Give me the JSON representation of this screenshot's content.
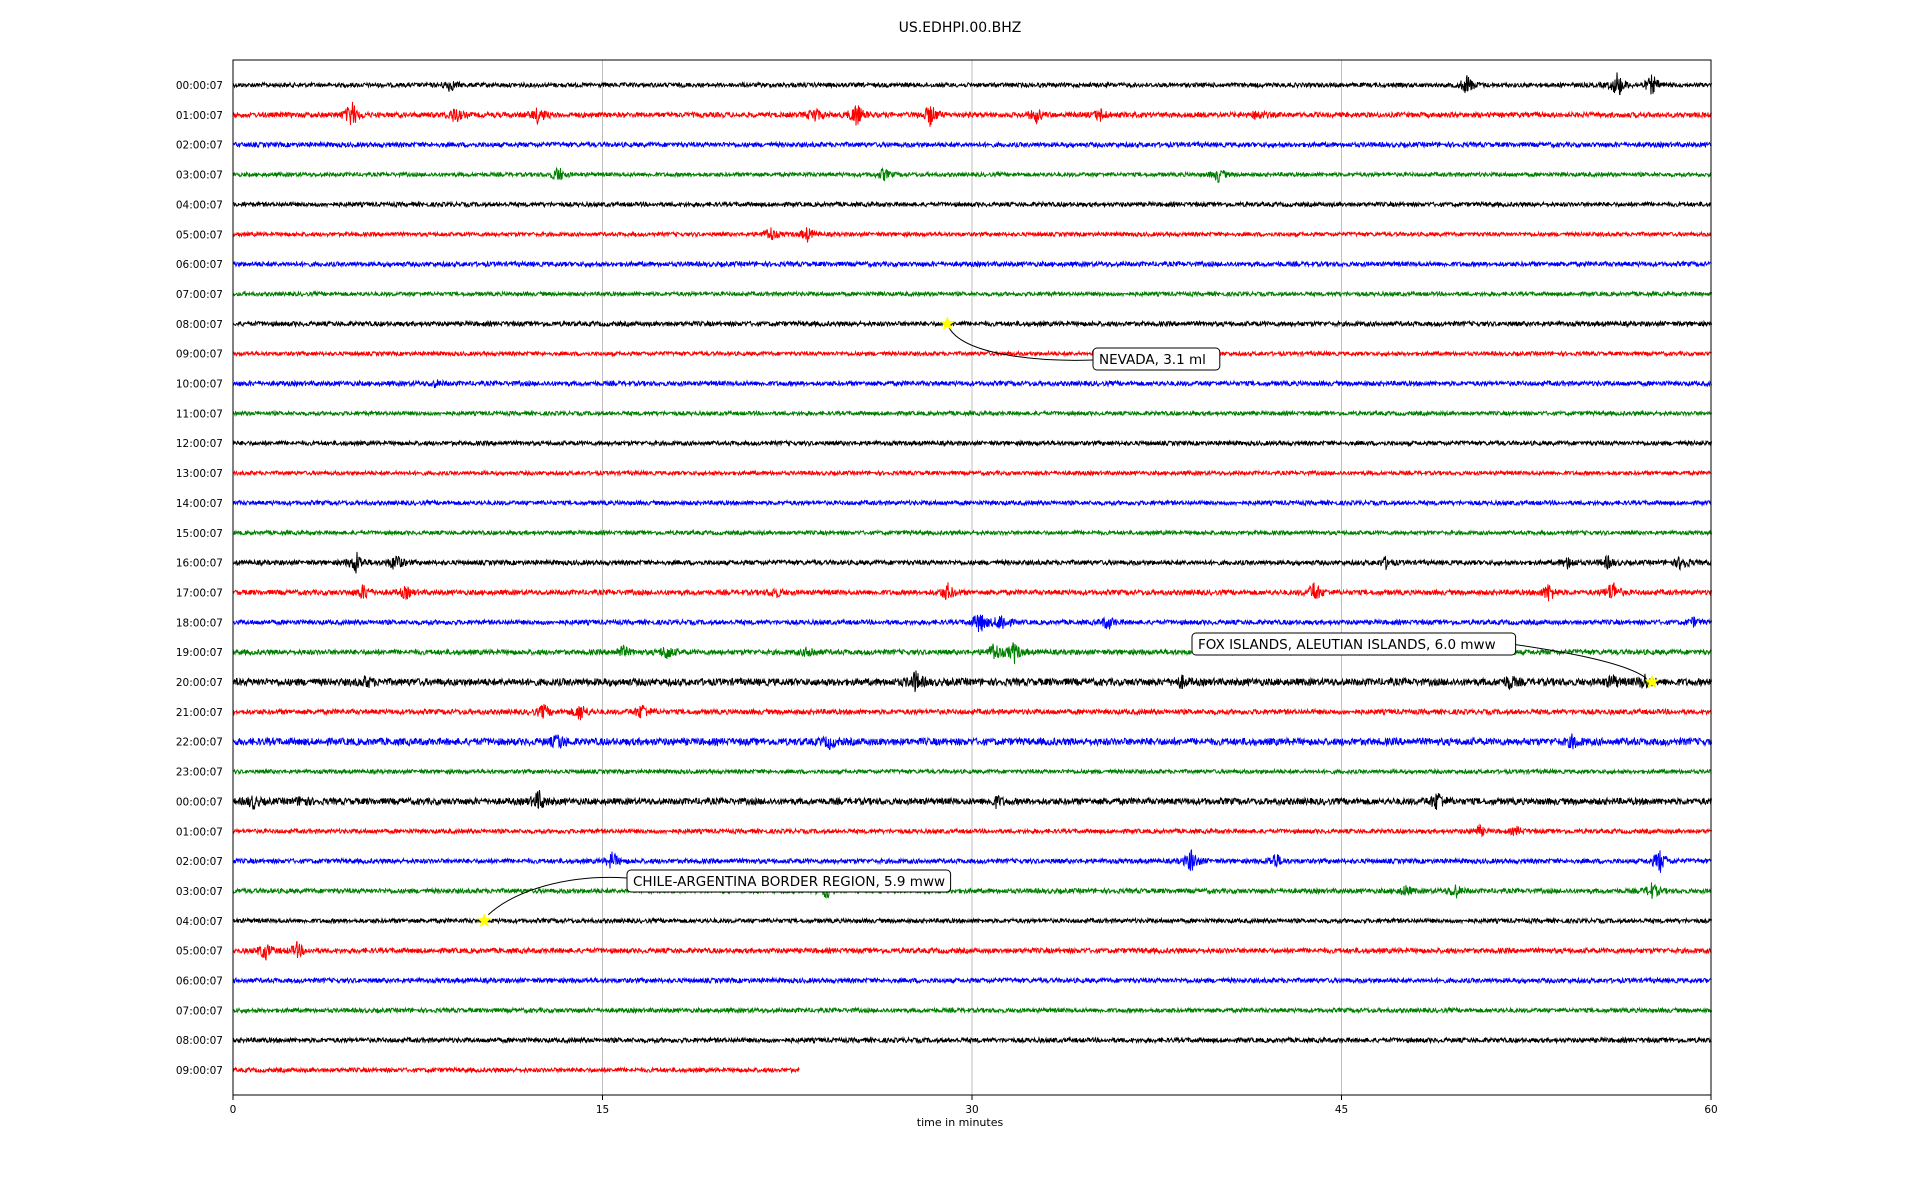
{
  "chart_data": {
    "type": "line",
    "title": "US.EDHPI.00.BHZ",
    "xlabel": "time in minutes",
    "ylabel": "",
    "xlim": [
      0,
      60
    ],
    "xticks": [
      0,
      15,
      30,
      45,
      60
    ],
    "grid": "vertical",
    "series_colors": [
      "#000000",
      "#ff0000",
      "#0000ff",
      "#008000"
    ],
    "rows": [
      {
        "label": "00:00:07",
        "end": 60,
        "noise": 1.2,
        "bursts": [
          [
            8.8,
            6
          ],
          [
            50.1,
            10
          ],
          [
            56.2,
            14
          ],
          [
            57.6,
            10
          ]
        ]
      },
      {
        "label": "01:00:07",
        "end": 60,
        "noise": 1.4,
        "bursts": [
          [
            4.8,
            14
          ],
          [
            9.0,
            8
          ],
          [
            12.4,
            9
          ],
          [
            23.6,
            8
          ],
          [
            25.3,
            12
          ],
          [
            28.3,
            11
          ],
          [
            32.6,
            7
          ],
          [
            35.2,
            6
          ],
          [
            41.6,
            5
          ]
        ]
      },
      {
        "label": "02:00:07",
        "end": 60,
        "noise": 1.3,
        "bursts": []
      },
      {
        "label": "03:00:07",
        "end": 60,
        "noise": 1.1,
        "bursts": [
          [
            13.2,
            8
          ],
          [
            26.4,
            6
          ],
          [
            40.0,
            7
          ]
        ]
      },
      {
        "label": "04:00:07",
        "end": 60,
        "noise": 1.2,
        "bursts": []
      },
      {
        "label": "05:00:07",
        "end": 60,
        "noise": 1.1,
        "bursts": [
          [
            21.8,
            8
          ],
          [
            23.3,
            7
          ]
        ]
      },
      {
        "label": "06:00:07",
        "end": 60,
        "noise": 1.3,
        "bursts": []
      },
      {
        "label": "07:00:07",
        "end": 60,
        "noise": 1.1,
        "bursts": []
      },
      {
        "label": "08:00:07",
        "end": 60,
        "noise": 1.3,
        "bursts": []
      },
      {
        "label": "09:00:07",
        "end": 60,
        "noise": 1.1,
        "bursts": []
      },
      {
        "label": "10:00:07",
        "end": 60,
        "noise": 1.3,
        "bursts": [
          [
            8.2,
            3
          ]
        ]
      },
      {
        "label": "11:00:07",
        "end": 60,
        "noise": 1.1,
        "bursts": []
      },
      {
        "label": "12:00:07",
        "end": 60,
        "noise": 1.2,
        "bursts": []
      },
      {
        "label": "13:00:07",
        "end": 60,
        "noise": 1.1,
        "bursts": []
      },
      {
        "label": "14:00:07",
        "end": 60,
        "noise": 1.2,
        "bursts": []
      },
      {
        "label": "15:00:07",
        "end": 60,
        "noise": 1.1,
        "bursts": []
      },
      {
        "label": "16:00:07",
        "end": 60,
        "noise": 1.3,
        "bursts": [
          [
            5.0,
            12
          ],
          [
            6.6,
            9
          ],
          [
            46.8,
            5
          ],
          [
            54.2,
            6
          ],
          [
            55.8,
            6
          ],
          [
            58.8,
            8
          ]
        ]
      },
      {
        "label": "17:00:07",
        "end": 60,
        "noise": 1.4,
        "bursts": [
          [
            5.3,
            8
          ],
          [
            7.0,
            6
          ],
          [
            22.0,
            5
          ],
          [
            29.0,
            9
          ],
          [
            43.9,
            11
          ],
          [
            53.4,
            9
          ],
          [
            56.0,
            12
          ]
        ]
      },
      {
        "label": "18:00:07",
        "end": 60,
        "noise": 1.3,
        "bursts": [
          [
            30.3,
            12
          ],
          [
            31.2,
            10
          ],
          [
            35.5,
            7
          ],
          [
            59.3,
            4
          ]
        ]
      },
      {
        "label": "19:00:07",
        "end": 60,
        "noise": 1.4,
        "bursts": [
          [
            15.8,
            6
          ],
          [
            17.6,
            8
          ],
          [
            23.4,
            6
          ],
          [
            30.9,
            10
          ],
          [
            31.7,
            10
          ]
        ]
      },
      {
        "label": "20:00:07",
        "end": 60,
        "noise": 2.0,
        "bursts": [
          [
            5.4,
            5
          ],
          [
            27.7,
            10
          ],
          [
            38.5,
            5
          ],
          [
            51.8,
            6
          ],
          [
            56.0,
            6
          ],
          [
            57.3,
            7
          ]
        ]
      },
      {
        "label": "21:00:07",
        "end": 60,
        "noise": 1.4,
        "bursts": [
          [
            12.6,
            7
          ],
          [
            14.1,
            9
          ],
          [
            16.6,
            8
          ]
        ]
      },
      {
        "label": "22:00:07",
        "end": 60,
        "noise": 2.0,
        "bursts": [
          [
            13.2,
            7
          ],
          [
            24.2,
            5
          ],
          [
            54.4,
            6
          ]
        ]
      },
      {
        "label": "23:00:07",
        "end": 60,
        "noise": 1.1,
        "bursts": []
      },
      {
        "label": "00:00:07",
        "end": 60,
        "noise": 1.8,
        "bursts": [
          [
            0.8,
            6
          ],
          [
            2.8,
            5
          ],
          [
            12.4,
            10
          ],
          [
            31.0,
            5
          ],
          [
            48.9,
            10
          ]
        ]
      },
      {
        "label": "01:00:07",
        "end": 60,
        "noise": 1.2,
        "bursts": [
          [
            50.6,
            5
          ],
          [
            52.1,
            4
          ]
        ]
      },
      {
        "label": "02:00:07",
        "end": 60,
        "noise": 1.3,
        "bursts": [
          [
            15.4,
            9
          ],
          [
            38.9,
            12
          ],
          [
            42.3,
            8
          ],
          [
            57.9,
            12
          ]
        ]
      },
      {
        "label": "03:00:07",
        "end": 60,
        "noise": 1.3,
        "bursts": [
          [
            24.1,
            7
          ],
          [
            47.6,
            5
          ],
          [
            49.6,
            7
          ],
          [
            57.6,
            8
          ]
        ]
      },
      {
        "label": "04:00:07",
        "end": 60,
        "noise": 1.2,
        "bursts": []
      },
      {
        "label": "05:00:07",
        "end": 60,
        "noise": 1.4,
        "bursts": [
          [
            1.3,
            9
          ],
          [
            2.6,
            7
          ]
        ]
      },
      {
        "label": "06:00:07",
        "end": 60,
        "noise": 1.3,
        "bursts": []
      },
      {
        "label": "07:00:07",
        "end": 60,
        "noise": 1.2,
        "bursts": []
      },
      {
        "label": "08:00:07",
        "end": 60,
        "noise": 1.3,
        "bursts": []
      },
      {
        "label": "09:00:07",
        "end": 23,
        "noise": 1.2,
        "bursts": []
      }
    ],
    "events": [
      {
        "label": "NEVADA, 3.1 ml",
        "row": 8,
        "x": 29.0,
        "marker_color": "#ffff00"
      },
      {
        "label": "FOX ISLANDS, ALEUTIAN ISLANDS, 6.0 mww",
        "row": 20,
        "x": 57.6,
        "marker_color": "#ffff00"
      },
      {
        "label": "CHILE-ARGENTINA BORDER REGION, 5.9 mww",
        "row": 28,
        "x": 10.2,
        "marker_color": "#ffff00"
      }
    ]
  }
}
